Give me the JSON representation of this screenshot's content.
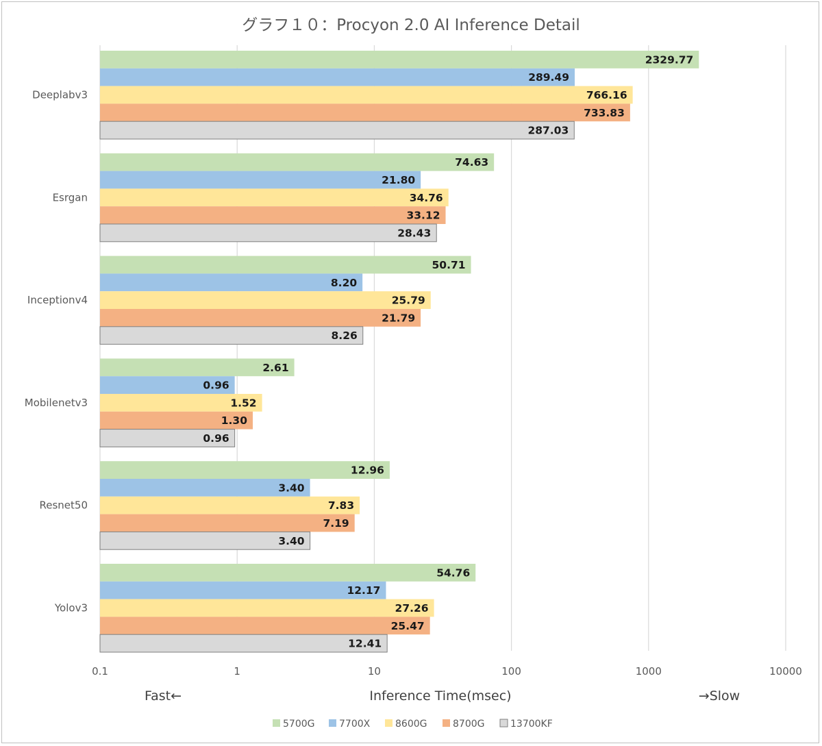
{
  "chart_data": {
    "type": "bar",
    "orientation": "horizontal",
    "title": "グラフ１０：Procyon 2.0 AI Inference Detail",
    "xlabel": "Inference Time(msec)",
    "xlabel_left": "Fast←",
    "xlabel_right": "→Slow",
    "x_scale": "log",
    "xlim": [
      0.1,
      10000
    ],
    "x_ticks": [
      "0.1",
      "1",
      "10",
      "100",
      "1000",
      "10000"
    ],
    "grid": "vertical",
    "legend_position": "bottom",
    "categories": [
      "Deeplabv3",
      "Esrgan",
      "Inceptionv4",
      "Mobilenetv3",
      "Resnet50",
      "Yolov3"
    ],
    "series": [
      {
        "name": "5700G",
        "color": "#c5e0b4",
        "values": [
          2329.77,
          74.63,
          50.71,
          2.61,
          12.96,
          54.76
        ],
        "labels": [
          "2329.77",
          "74.63",
          "50.71",
          "2.61",
          "12.96",
          "54.76"
        ]
      },
      {
        "name": "7700X",
        "color": "#9dc3e6",
        "values": [
          289.49,
          21.8,
          8.2,
          0.96,
          3.4,
          12.17
        ],
        "labels": [
          "289.49",
          "21.80",
          "8.20",
          "0.96",
          "3.40",
          "12.17"
        ]
      },
      {
        "name": "8600G",
        "color": "#ffe699",
        "values": [
          766.16,
          34.76,
          25.79,
          1.52,
          7.83,
          27.26
        ],
        "labels": [
          "766.16",
          "34.76",
          "25.79",
          "1.52",
          "7.83",
          "27.26"
        ]
      },
      {
        "name": "8700G",
        "color": "#f4b183",
        "values": [
          733.83,
          33.12,
          21.79,
          1.3,
          7.19,
          25.47
        ],
        "labels": [
          "733.83",
          "33.12",
          "21.79",
          "1.30",
          "7.19",
          "25.47"
        ]
      },
      {
        "name": "13700KF",
        "color": "#d9d9d9",
        "stroke": "#7f7f7f",
        "values": [
          287.03,
          28.43,
          8.26,
          0.96,
          3.4,
          12.41
        ],
        "labels": [
          "287.03",
          "28.43",
          "8.26",
          "0.96",
          "3.40",
          "12.41"
        ]
      }
    ]
  }
}
